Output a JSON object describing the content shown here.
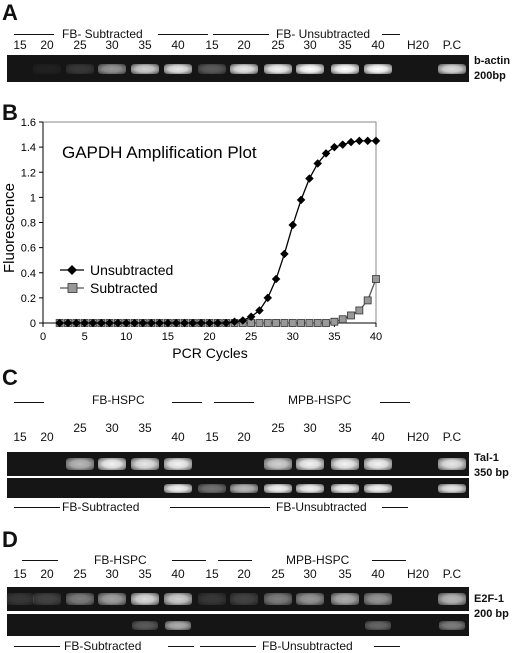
{
  "panelA": {
    "letter": "A",
    "group1": "FB- Subtracted",
    "group2": "FB- Unsubtracted",
    "lanes": [
      "15",
      "20",
      "25",
      "30",
      "35",
      "40",
      "15",
      "20",
      "25",
      "30",
      "35",
      "40",
      "H20",
      "P.C"
    ],
    "gene": "b-actin",
    "size": "200bp",
    "intensities": [
      0.0,
      0.05,
      0.15,
      0.55,
      0.8,
      0.9,
      0.3,
      0.9,
      0.95,
      1.0,
      1.0,
      1.0,
      0.0,
      0.85
    ]
  },
  "panelB": {
    "letter": "B",
    "chart_data": {
      "type": "line",
      "title": "GAPDH Amplification Plot",
      "xlabel": "PCR Cycles",
      "ylabel": "Fluorescence",
      "xlim": [
        0,
        40
      ],
      "ylim": [
        0,
        1.6
      ],
      "xticks": [
        0,
        5,
        10,
        15,
        20,
        25,
        30,
        35,
        40
      ],
      "yticks": [
        0,
        0.2,
        0.4,
        0.6,
        0.8,
        1,
        1.2,
        1.4,
        1.6
      ],
      "legend_position": "middle-left",
      "series": [
        {
          "name": "Unsubtracted",
          "marker": "diamond",
          "color": "#000000",
          "x": [
            2,
            3,
            4,
            5,
            6,
            7,
            8,
            9,
            10,
            11,
            12,
            13,
            14,
            15,
            16,
            17,
            18,
            19,
            20,
            21,
            22,
            23,
            24,
            25,
            26,
            27,
            28,
            29,
            30,
            31,
            32,
            33,
            34,
            35,
            36,
            37,
            38,
            39,
            40
          ],
          "y": [
            0,
            0,
            0,
            0,
            0,
            0,
            0,
            0,
            0,
            0,
            0,
            0,
            0,
            0,
            0,
            0,
            0,
            0,
            0,
            0,
            0,
            0.01,
            0.02,
            0.05,
            0.1,
            0.2,
            0.35,
            0.55,
            0.78,
            0.98,
            1.15,
            1.27,
            1.35,
            1.4,
            1.42,
            1.44,
            1.45,
            1.45,
            1.45
          ]
        },
        {
          "name": "Subtracted",
          "marker": "square",
          "color": "#999999",
          "x": [
            2,
            3,
            4,
            5,
            6,
            7,
            8,
            9,
            10,
            11,
            12,
            13,
            14,
            15,
            16,
            17,
            18,
            19,
            20,
            21,
            22,
            23,
            24,
            25,
            26,
            27,
            28,
            29,
            30,
            31,
            32,
            33,
            34,
            35,
            36,
            37,
            38,
            39,
            40
          ],
          "y": [
            0,
            0,
            0,
            0,
            0,
            0,
            0,
            0,
            0,
            0,
            0,
            0,
            0,
            0,
            0,
            0,
            0,
            0,
            0,
            0,
            0,
            0,
            0,
            0,
            0,
            0,
            0,
            0,
            0,
            0,
            0,
            0,
            0,
            0.01,
            0.03,
            0.06,
            0.1,
            0.18,
            0.35
          ]
        }
      ]
    }
  },
  "panelC": {
    "letter": "C",
    "group1": "FB-HSPC",
    "group2": "MPB-HSPC",
    "lanes": [
      "15",
      "20",
      "25",
      "30",
      "35",
      "40",
      "15",
      "20",
      "25",
      "30",
      "35",
      "40",
      "H20",
      "P.C"
    ],
    "gene": "Tal-1",
    "size": "350 bp",
    "row1_intensities": [
      0,
      0,
      0.7,
      0.95,
      0.9,
      0.95,
      0,
      0,
      0.8,
      0.95,
      0.95,
      0.95,
      0,
      0.9
    ],
    "row2_intensities": [
      0,
      0,
      0,
      0,
      0,
      0.95,
      0.4,
      0.7,
      0.95,
      0.95,
      0.95,
      0.95,
      0,
      0.9
    ],
    "sub1": "FB-Subtracted",
    "sub2": "FB-Unsubtracted"
  },
  "panelD": {
    "letter": "D",
    "group1": "FB-HSPC",
    "group2": "MPB-HSPC",
    "lanes": [
      "15",
      "20",
      "25",
      "30",
      "35",
      "40",
      "15",
      "20",
      "25",
      "30",
      "35",
      "40",
      "H20",
      "P.C"
    ],
    "gene": "E2F-1",
    "size": "200 bp",
    "row1_intensities": [
      0.15,
      0.2,
      0.45,
      0.6,
      0.85,
      0.8,
      0.15,
      0.2,
      0.45,
      0.55,
      0.65,
      0.55,
      0,
      0.7
    ],
    "row2_intensities": [
      0,
      0,
      0,
      0,
      0.3,
      0.65,
      0,
      0,
      0,
      0,
      0,
      0.35,
      0,
      0.45
    ],
    "sub1": "FB-Subtracted",
    "sub2": "FB-Unsubtracted"
  }
}
